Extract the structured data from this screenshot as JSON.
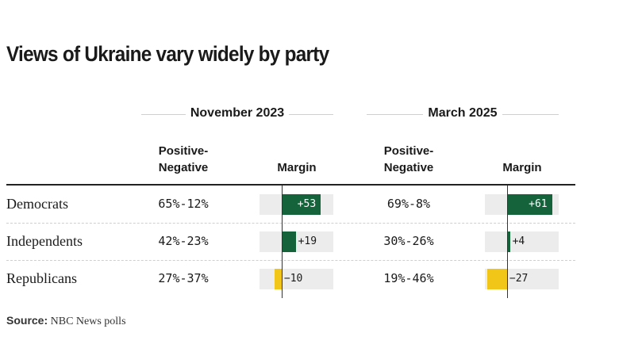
{
  "title": "Views of Ukraine vary widely by party",
  "periods": [
    {
      "label": "November 2023"
    },
    {
      "label": "March 2025"
    }
  ],
  "columns": {
    "pn_line1": "Positive-",
    "pn_line2": "Negative",
    "margin": "Margin"
  },
  "source": {
    "label": "Source:",
    "text": "NBC News polls"
  },
  "colors": {
    "positive": "#14633a",
    "negative": "#f2c618",
    "track": "#ececec"
  },
  "chart_data": {
    "type": "table",
    "title": "Views of Ukraine vary widely by party",
    "periods": [
      "November 2023",
      "March 2025"
    ],
    "margin_scale": [
      -30,
      70
    ],
    "rows": [
      {
        "party": "Democrats",
        "values": [
          {
            "pn": "65%-12%",
            "margin": 53,
            "margin_label": "+53"
          },
          {
            "pn": "69%-8%",
            "margin": 61,
            "margin_label": "+61"
          }
        ]
      },
      {
        "party": "Independents",
        "values": [
          {
            "pn": "42%-23%",
            "margin": 19,
            "margin_label": "+19"
          },
          {
            "pn": "30%-26%",
            "margin": 4,
            "margin_label": "+4"
          }
        ]
      },
      {
        "party": "Republicans",
        "values": [
          {
            "pn": "27%-37%",
            "margin": -10,
            "margin_label": "−10"
          },
          {
            "pn": "19%-46%",
            "margin": -27,
            "margin_label": "−27"
          }
        ]
      }
    ]
  }
}
